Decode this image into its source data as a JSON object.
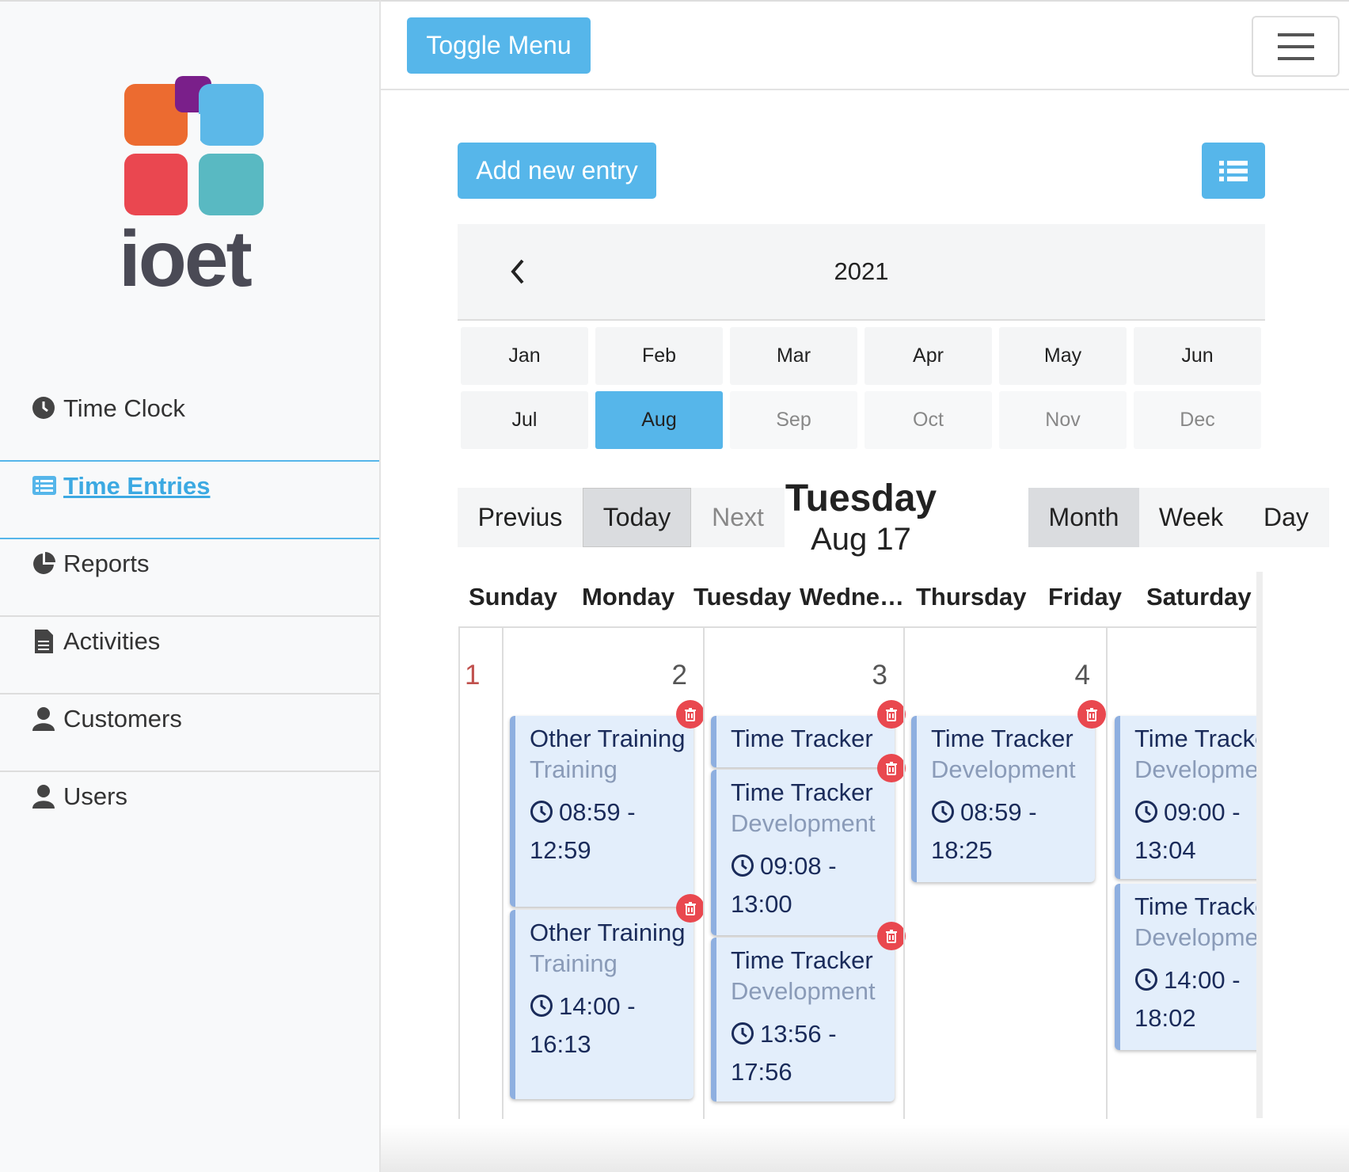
{
  "sidebar": {
    "logo_text": "ioet",
    "nav": [
      "Time Clock",
      "Time Entries",
      "Reports",
      "Activities",
      "Customers",
      "Users"
    ],
    "active": "Time Entries"
  },
  "topbar": {
    "toggle_button": "Toggle Menu"
  },
  "toolbar": {
    "add_button": "Add new entry"
  },
  "year_picker": {
    "year": "2021",
    "months": [
      "Jan",
      "Feb",
      "Mar",
      "Apr",
      "May",
      "Jun",
      "Jul",
      "Aug",
      "Sep",
      "Oct",
      "Nov",
      "Dec"
    ],
    "selected": "Aug"
  },
  "calendar": {
    "nav_buttons": [
      "Previus",
      "Today",
      "Next"
    ],
    "title_day": "Tuesday",
    "title_date": "Aug 17",
    "views": [
      "Month",
      "Week",
      "Day"
    ],
    "active_view": "Month",
    "weekdays": [
      "Sunday",
      "Monday",
      "Tuesday",
      "Wedne…",
      "Thursday",
      "Friday",
      "Saturday"
    ],
    "days": [
      {
        "number": "1",
        "events": []
      },
      {
        "number": "2",
        "events": [
          {
            "title": "Other Training",
            "category": "Training",
            "time": "08:59 - 12:59"
          },
          {
            "title": "Other Training",
            "category": "Training",
            "time": "14:00 - 16:13"
          }
        ]
      },
      {
        "number": "3",
        "events": [
          {
            "title": "Time Tracker"
          },
          {
            "title": "Time Tracker",
            "category": "Development",
            "time": "09:08 - 13:00"
          },
          {
            "title": "Time Tracker",
            "category": "Development",
            "time": "13:56 - 17:56"
          }
        ]
      },
      {
        "number": "4",
        "events": [
          {
            "title": "Time Tracker",
            "category": "Development",
            "time": "08:59 - 18:25"
          }
        ]
      },
      {
        "number": null,
        "events": [
          {
            "title": "Time Tracker",
            "category": "Development",
            "time": "09:00 - 13:04"
          },
          {
            "title": "Time Tracker",
            "category": "Development",
            "time": "14:00 - 18:02"
          }
        ]
      }
    ]
  }
}
